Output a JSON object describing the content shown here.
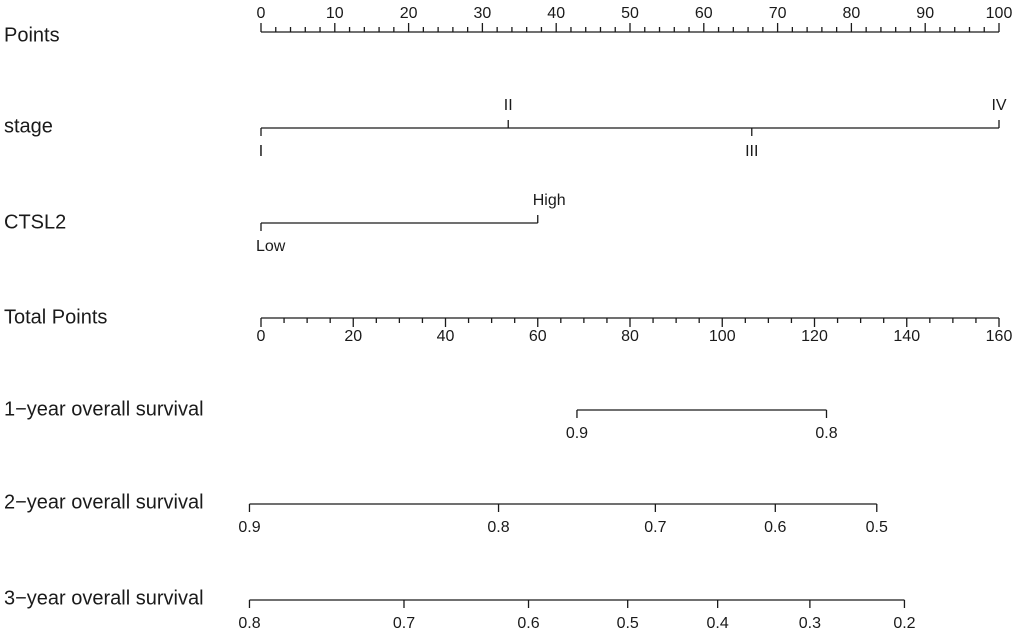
{
  "chart_data": {
    "type": "nomogram",
    "rows": [
      {
        "id": "points",
        "label": "Points",
        "kind": "scale",
        "range": [
          0,
          100
        ],
        "major_ticks": [
          0,
          10,
          20,
          30,
          40,
          50,
          60,
          70,
          80,
          90,
          100
        ],
        "minor_step": 2
      },
      {
        "id": "stage",
        "label": "stage",
        "kind": "categorical",
        "levels": [
          {
            "label": "I",
            "points": 0
          },
          {
            "label": "II",
            "points": 33.5
          },
          {
            "label": "III",
            "points": 66.5
          },
          {
            "label": "IV",
            "points": 100
          }
        ]
      },
      {
        "id": "ctsl2",
        "label": "CTSL2",
        "kind": "categorical",
        "levels": [
          {
            "label": "Low",
            "points": 0
          },
          {
            "label": "High",
            "points": 37.5
          }
        ]
      },
      {
        "id": "total_points",
        "label": "Total Points",
        "kind": "scale",
        "range": [
          0,
          160
        ],
        "major_ticks": [
          0,
          20,
          40,
          60,
          80,
          100,
          120,
          140,
          160
        ],
        "minor_step": 5
      },
      {
        "id": "os1",
        "label": "1−year overall survival",
        "kind": "probability",
        "ticks": [
          {
            "label": "0.9",
            "total_points": 68.5
          },
          {
            "label": "0.8",
            "total_points": 122.6
          }
        ]
      },
      {
        "id": "os2",
        "label": "2−year overall survival",
        "kind": "probability",
        "ticks": [
          {
            "label": "0.9",
            "total_points": -2.5
          },
          {
            "label": "0.8",
            "total_points": 51.5
          },
          {
            "label": "0.7",
            "total_points": 85.5
          },
          {
            "label": "0.6",
            "total_points": 111.5
          },
          {
            "label": "0.5",
            "total_points": 133.5
          }
        ]
      },
      {
        "id": "os3",
        "label": "3−year overall survival",
        "kind": "probability",
        "ticks": [
          {
            "label": "0.8",
            "total_points": -2.5
          },
          {
            "label": "0.7",
            "total_points": 31
          },
          {
            "label": "0.6",
            "total_points": 58
          },
          {
            "label": "0.5",
            "total_points": 79.5
          },
          {
            "label": "0.4",
            "total_points": 99
          },
          {
            "label": "0.3",
            "total_points": 119
          },
          {
            "label": "0.2",
            "total_points": 139.5
          }
        ]
      }
    ]
  }
}
